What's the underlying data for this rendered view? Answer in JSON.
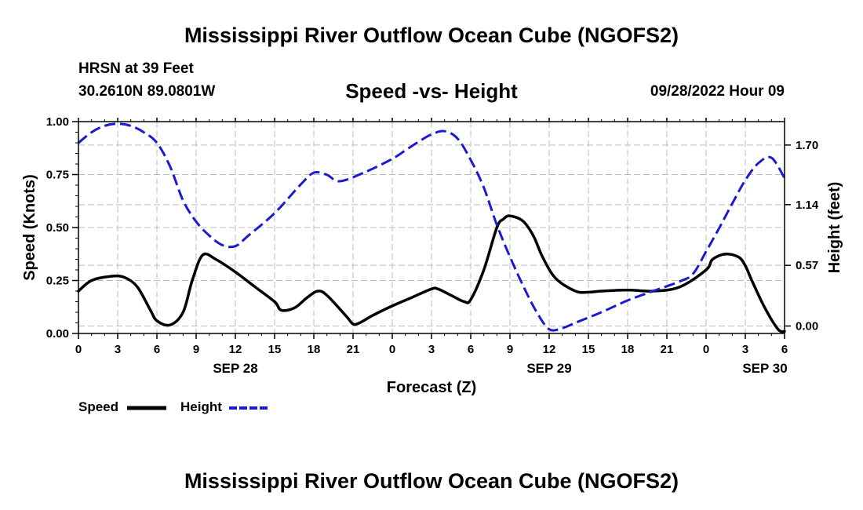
{
  "page": {
    "title_top": "Mississippi River Outflow Ocean Cube (NGOFS2)",
    "title_bottom": "Mississippi River Outflow Ocean Cube (NGOFS2)",
    "station": "HRSN at 39 Feet",
    "coords": "30.2610N  89.0801W",
    "subtitle": "Speed -vs- Height",
    "datetime": "09/28/2022 Hour 09"
  },
  "colors": {
    "speed": "#000000",
    "height": "#1a1ad0",
    "grid": "#bdbdbd"
  },
  "chart_data": {
    "type": "line",
    "xlabel": "Forecast (Z)",
    "x_hours": [
      0,
      54
    ],
    "x_ticks": [
      0,
      3,
      6,
      9,
      12,
      15,
      18,
      21,
      24,
      27,
      30,
      33,
      36,
      39,
      42,
      45,
      48,
      51,
      54
    ],
    "x_tick_labels": [
      "0",
      "3",
      "6",
      "9",
      "12",
      "15",
      "18",
      "21",
      "0",
      "3",
      "6",
      "9",
      "12",
      "15",
      "18",
      "21",
      "0",
      "3",
      "6"
    ],
    "date_labels": [
      {
        "hour": 12,
        "label": "SEP 28"
      },
      {
        "hour": 36,
        "label": "SEP 29"
      },
      {
        "hour": 52.5,
        "label": "SEP 30"
      }
    ],
    "y_left": {
      "label": "Speed (Knots)",
      "range": [
        0,
        1
      ],
      "ticks": [
        0,
        0.25,
        0.5,
        0.75,
        1
      ],
      "tick_labels": [
        "0.00",
        "0.25",
        "0.50",
        "0.75",
        "1.00"
      ]
    },
    "y_right": {
      "label": "Height (feet)",
      "range": [
        -0.07,
        1.92
      ],
      "ticks": [
        0,
        0.57,
        1.14,
        1.7
      ],
      "tick_labels": [
        "0.00",
        "0.57",
        "1.14",
        "1.70"
      ]
    },
    "series": [
      {
        "name": "Speed",
        "axis": "left",
        "style": "solid",
        "x": [
          0,
          1,
          2.5,
          3.5,
          4.5,
          5.5,
          6,
          7,
          8,
          8.7,
          9.5,
          10.5,
          12,
          13.5,
          15,
          15.5,
          16.5,
          17.5,
          18.3,
          19,
          20.5,
          21,
          21.5,
          22.5,
          24,
          25.5,
          27,
          27.5,
          28.5,
          29.5,
          30,
          31,
          32,
          32.5,
          33,
          34,
          34.8,
          35.5,
          36.5,
          38,
          39,
          40,
          42,
          44,
          46,
          48,
          48.5,
          49.5,
          50.5,
          51,
          51.5,
          52.5,
          53.5,
          54
        ],
        "y": [
          0.2,
          0.25,
          0.27,
          0.265,
          0.22,
          0.11,
          0.06,
          0.04,
          0.1,
          0.25,
          0.37,
          0.35,
          0.29,
          0.22,
          0.15,
          0.11,
          0.12,
          0.17,
          0.2,
          0.18,
          0.08,
          0.045,
          0.05,
          0.085,
          0.13,
          0.17,
          0.21,
          0.21,
          0.18,
          0.15,
          0.16,
          0.3,
          0.5,
          0.54,
          0.555,
          0.53,
          0.46,
          0.36,
          0.26,
          0.2,
          0.195,
          0.2,
          0.205,
          0.2,
          0.22,
          0.3,
          0.35,
          0.375,
          0.36,
          0.32,
          0.25,
          0.12,
          0.02,
          0.01
        ]
      },
      {
        "name": "Height",
        "axis": "right",
        "style": "dashed",
        "x": [
          0,
          1,
          2,
          3,
          4,
          5,
          6,
          7,
          8,
          9,
          10,
          11,
          12,
          13,
          15,
          17,
          18,
          19,
          20,
          22,
          24,
          25,
          26,
          27,
          28,
          29,
          30,
          31,
          32,
          33,
          34,
          35,
          36,
          37,
          38,
          40,
          42,
          44,
          46,
          47,
          48,
          49,
          50,
          51,
          52,
          53,
          54
        ],
        "y": [
          1.72,
          1.82,
          1.88,
          1.9,
          1.88,
          1.82,
          1.72,
          1.5,
          1.18,
          0.98,
          0.85,
          0.76,
          0.75,
          0.85,
          1.06,
          1.33,
          1.44,
          1.42,
          1.36,
          1.45,
          1.57,
          1.65,
          1.73,
          1.8,
          1.83,
          1.76,
          1.56,
          1.3,
          0.95,
          0.65,
          0.38,
          0.14,
          -0.03,
          -0.02,
          0.03,
          0.13,
          0.24,
          0.33,
          0.42,
          0.49,
          0.7,
          0.92,
          1.15,
          1.37,
          1.53,
          1.58,
          1.39
        ]
      }
    ],
    "legend": [
      {
        "label": "Speed",
        "style": "solid"
      },
      {
        "label": "Height",
        "style": "dashed"
      }
    ]
  }
}
